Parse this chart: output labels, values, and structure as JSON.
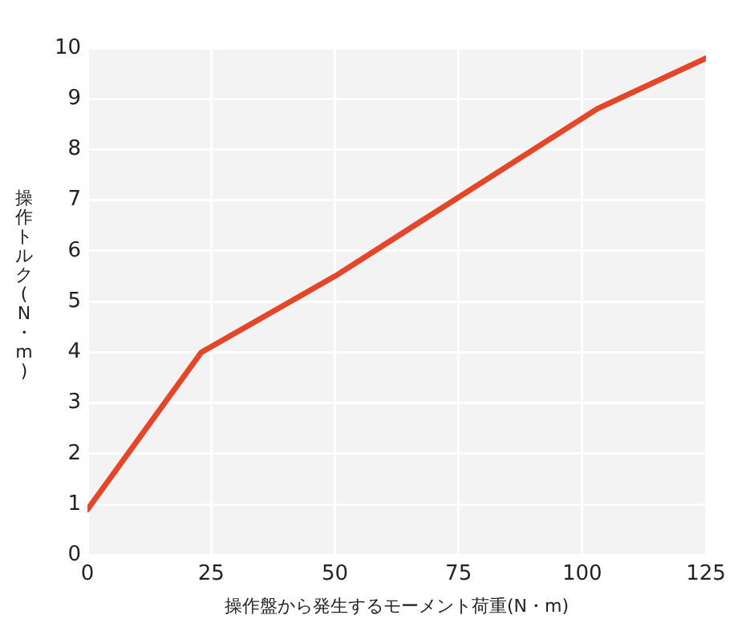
{
  "chart_data": {
    "type": "line",
    "xlabel": "操作盤から発生するモーメント荷重(N・m)",
    "ylabel": "操作トルク(N・m)",
    "x": [
      0,
      23,
      50,
      103,
      125
    ],
    "series": [
      {
        "color": "#e4462a",
        "values": [
          0.9,
          4.0,
          5.5,
          8.8,
          9.8
        ]
      }
    ],
    "xlim": [
      0,
      125
    ],
    "xticks": [
      0,
      25,
      50,
      75,
      100,
      125
    ],
    "ylim": [
      0,
      10
    ],
    "yticks": [
      0,
      1,
      2,
      3,
      4,
      5,
      6,
      7,
      8,
      9,
      10
    ],
    "grid": true,
    "legend": false,
    "marker": "none",
    "line_style": "solid"
  }
}
